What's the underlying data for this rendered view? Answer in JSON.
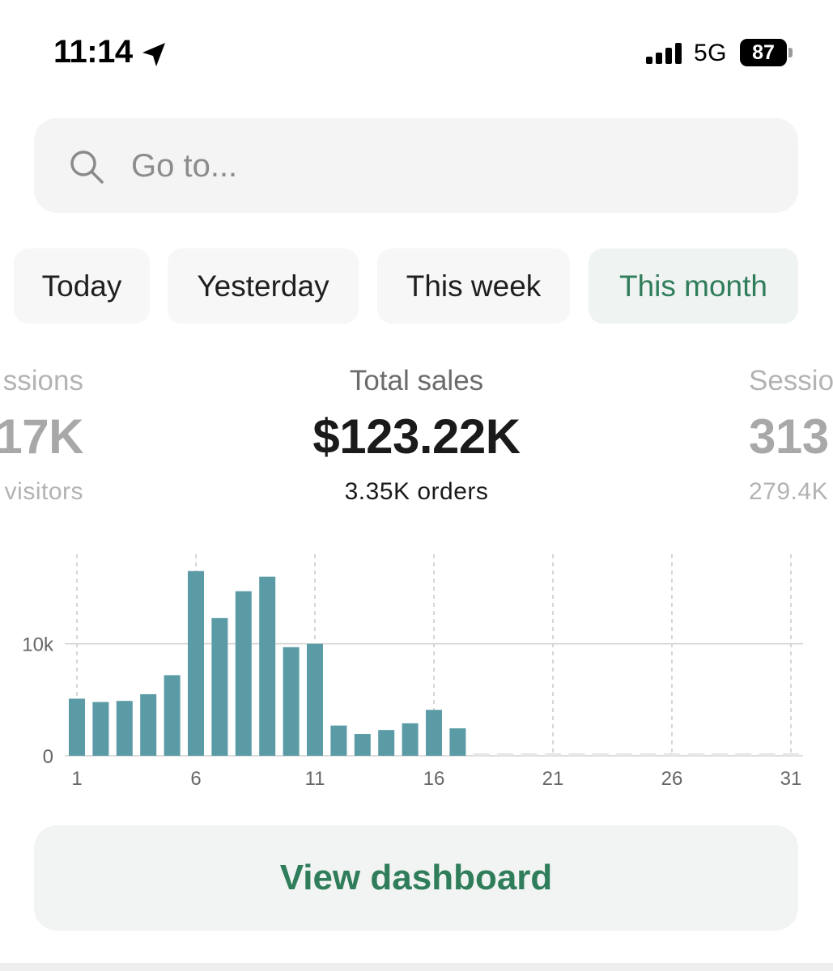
{
  "status_bar": {
    "time": "11:14",
    "location_icon": "location-arrow-icon",
    "signal_icon": "cellular-signal-icon",
    "network": "5G",
    "battery_level": "87"
  },
  "search": {
    "placeholder": "Go to...",
    "icon": "search-icon"
  },
  "tabs": [
    {
      "label": "Today",
      "active": false
    },
    {
      "label": "Yesterday",
      "active": false
    },
    {
      "label": "This week",
      "active": false
    },
    {
      "label": "This month",
      "active": true
    }
  ],
  "metrics": {
    "left": {
      "label": "ssions",
      "value": "17K",
      "sub": "visitors"
    },
    "center": {
      "label": "Total sales",
      "value": "$123.22K",
      "sub": "3.35K orders"
    },
    "right": {
      "label": "Sessio",
      "value": "313",
      "sub": "279.4K"
    }
  },
  "chart_data": {
    "type": "bar",
    "title": "",
    "xlabel": "",
    "ylabel": "",
    "x": [
      1,
      2,
      3,
      4,
      5,
      6,
      7,
      8,
      9,
      10,
      11,
      12,
      13,
      14,
      15,
      16,
      17,
      18,
      19,
      20,
      21,
      22,
      23,
      24,
      25,
      26,
      27,
      28,
      29,
      30,
      31
    ],
    "x_tick_labels": [
      "1",
      "6",
      "11",
      "16",
      "21",
      "26",
      "31"
    ],
    "y_tick_labels": [
      "0",
      "10k"
    ],
    "ylim": [
      0,
      18000
    ],
    "series": [
      {
        "values": [
          5100,
          4800,
          4900,
          5500,
          7200,
          16500,
          12300,
          14700,
          16000,
          9700,
          10000,
          2700,
          1950,
          2300,
          2900,
          4100,
          2450,
          0,
          0,
          0,
          0,
          0,
          0,
          0,
          0,
          0,
          0,
          0,
          0,
          0,
          0
        ]
      }
    ],
    "bar_color": "#5b9ba6",
    "future_placeholder_color": "#e6e6e6",
    "gridlines": true
  },
  "button": {
    "label": "View dashboard"
  },
  "colors": {
    "accent": "#2f7d5a",
    "bar": "#5b9ba6"
  }
}
